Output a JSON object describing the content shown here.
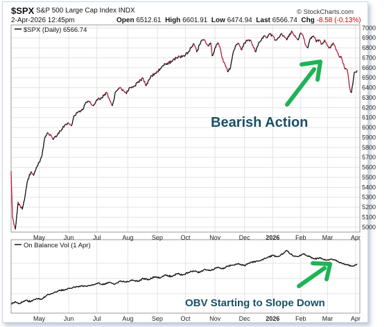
{
  "header": {
    "symbol": "$SPX",
    "name": "S&P 500 Large Cap Index",
    "exchange": "INDX",
    "date": "2-Apr-2026 12:45pm",
    "brand": "© StockCharts.com",
    "open_label": "Open",
    "open": "6512.61",
    "high_label": "High",
    "high": "6601.91",
    "low_label": "Low",
    "low": "6474.94",
    "last_label": "Last",
    "last": "6566.74",
    "chg_label": "Chg",
    "chg": "-8.58 (-0.13%)"
  },
  "colors": {
    "up": "#111111",
    "down": "#b3203a",
    "annotation": "#1a4f66",
    "arrow": "#1fb356",
    "grid": "#e3e3e3"
  },
  "annotations": {
    "price": "Bearish Action",
    "obv": "OBV Starting to Slope Down"
  },
  "chart_data": [
    {
      "type": "line",
      "legend": "$SPX (Daily) 6566.74",
      "y_ticks": [
        5000,
        5100,
        5200,
        5300,
        5400,
        5500,
        5600,
        5700,
        5800,
        5900,
        6000,
        6100,
        6200,
        6300,
        6400,
        6500,
        6600,
        6700,
        6800,
        6900,
        7000
      ],
      "ylim": [
        4950,
        7030
      ],
      "x_ticks": [
        "May",
        "Jun",
        "Jul",
        "Aug",
        "Sep",
        "Oct",
        "Nov",
        "Dec",
        "2026",
        "Feb",
        "Mar",
        "Apr"
      ],
      "x_tick_positions": [
        20,
        41,
        61,
        83,
        104,
        124,
        145,
        166,
        186,
        206,
        225,
        245
      ],
      "x_range": [
        0,
        248
      ],
      "series": [
        {
          "anchors": [
            [
              0,
              5560
            ],
            [
              1,
              5100
            ],
            [
              3,
              4980
            ],
            [
              5,
              5250
            ],
            [
              8,
              5180
            ],
            [
              10,
              5320
            ],
            [
              12,
              5480
            ],
            [
              14,
              5550
            ],
            [
              16,
              5520
            ],
            [
              18,
              5600
            ],
            [
              20,
              5650
            ],
            [
              22,
              5720
            ],
            [
              24,
              5900
            ],
            [
              26,
              5950
            ],
            [
              28,
              5930
            ],
            [
              30,
              5880
            ],
            [
              33,
              5930
            ],
            [
              36,
              5980
            ],
            [
              38,
              6020
            ],
            [
              41,
              6040
            ],
            [
              43,
              6020
            ],
            [
              45,
              6120
            ],
            [
              48,
              6160
            ],
            [
              51,
              6180
            ],
            [
              53,
              6250
            ],
            [
              56,
              6260
            ],
            [
              58,
              6220
            ],
            [
              61,
              6280
            ],
            [
              64,
              6300
            ],
            [
              66,
              6320
            ],
            [
              68,
              6350
            ],
            [
              70,
              6280
            ],
            [
              72,
              6220
            ],
            [
              74,
              6350
            ],
            [
              76,
              6380
            ],
            [
              78,
              6400
            ],
            [
              80,
              6370
            ],
            [
              82,
              6340
            ],
            [
              84,
              6400
            ],
            [
              86,
              6410
            ],
            [
              88,
              6420
            ],
            [
              90,
              6450
            ],
            [
              92,
              6480
            ],
            [
              94,
              6490
            ],
            [
              96,
              6420
            ],
            [
              98,
              6480
            ],
            [
              100,
              6520
            ],
            [
              102,
              6540
            ],
            [
              104,
              6560
            ],
            [
              106,
              6590
            ],
            [
              108,
              6620
            ],
            [
              110,
              6640
            ],
            [
              112,
              6650
            ],
            [
              114,
              6660
            ],
            [
              116,
              6690
            ],
            [
              118,
              6700
            ],
            [
              120,
              6710
            ],
            [
              122,
              6720
            ],
            [
              124,
              6730
            ],
            [
              126,
              6760
            ],
            [
              128,
              6800
            ],
            [
              130,
              6840
            ],
            [
              132,
              6760
            ],
            [
              134,
              6830
            ],
            [
              136,
              6880
            ],
            [
              138,
              6870
            ],
            [
              140,
              6820
            ],
            [
              142,
              6850
            ],
            [
              143,
              6720
            ],
            [
              145,
              6800
            ],
            [
              147,
              6850
            ],
            [
              149,
              6780
            ],
            [
              150,
              6700
            ],
            [
              152,
              6640
            ],
            [
              154,
              6560
            ],
            [
              156,
              6600
            ],
            [
              158,
              6760
            ],
            [
              160,
              6830
            ],
            [
              162,
              6840
            ],
            [
              164,
              6780
            ],
            [
              166,
              6850
            ],
            [
              168,
              6870
            ],
            [
              170,
              6880
            ],
            [
              172,
              6820
            ],
            [
              174,
              6760
            ],
            [
              176,
              6850
            ],
            [
              178,
              6880
            ],
            [
              180,
              6920
            ],
            [
              182,
              6900
            ],
            [
              184,
              6940
            ],
            [
              186,
              6920
            ],
            [
              188,
              6880
            ],
            [
              190,
              6900
            ],
            [
              192,
              6940
            ],
            [
              194,
              6920
            ],
            [
              196,
              6880
            ],
            [
              198,
              6940
            ],
            [
              200,
              6960
            ],
            [
              202,
              6920
            ],
            [
              204,
              6880
            ],
            [
              206,
              6950
            ],
            [
              208,
              6900
            ],
            [
              209,
              6840
            ],
            [
              211,
              6800
            ],
            [
              213,
              6900
            ],
            [
              215,
              6920
            ],
            [
              217,
              6860
            ],
            [
              219,
              6880
            ],
            [
              221,
              6840
            ],
            [
              223,
              6880
            ],
            [
              225,
              6820
            ],
            [
              227,
              6800
            ],
            [
              229,
              6850
            ],
            [
              231,
              6780
            ],
            [
              233,
              6720
            ],
            [
              235,
              6700
            ],
            [
              237,
              6600
            ],
            [
              239,
              6580
            ],
            [
              241,
              6380
            ],
            [
              242,
              6350
            ],
            [
              244,
              6550
            ],
            [
              246,
              6570
            ]
          ]
        }
      ]
    },
    {
      "type": "line",
      "legend": "On Balance Vol (1 Apr)",
      "x_ticks": [
        "May",
        "Jun",
        "Jul",
        "Aug",
        "Sep",
        "Oct",
        "Nov",
        "Dec",
        "2026",
        "Feb",
        "Mar",
        "Apr"
      ],
      "x_tick_positions": [
        20,
        41,
        61,
        83,
        104,
        124,
        145,
        166,
        186,
        206,
        225,
        245
      ],
      "ylim": [
        0,
        100
      ],
      "series": [
        {
          "anchors": [
            [
              0,
              8
            ],
            [
              3,
              12
            ],
            [
              6,
              9
            ],
            [
              10,
              14
            ],
            [
              14,
              12
            ],
            [
              18,
              17
            ],
            [
              22,
              16
            ],
            [
              26,
              24
            ],
            [
              30,
              26
            ],
            [
              34,
              30
            ],
            [
              38,
              31
            ],
            [
              42,
              34
            ],
            [
              46,
              36
            ],
            [
              50,
              38
            ],
            [
              54,
              37
            ],
            [
              58,
              40
            ],
            [
              62,
              43
            ],
            [
              66,
              40
            ],
            [
              70,
              44
            ],
            [
              74,
              41
            ],
            [
              78,
              46
            ],
            [
              82,
              44
            ],
            [
              86,
              48
            ],
            [
              90,
              45
            ],
            [
              94,
              50
            ],
            [
              98,
              48
            ],
            [
              102,
              53
            ],
            [
              106,
              51
            ],
            [
              110,
              56
            ],
            [
              114,
              53
            ],
            [
              118,
              58
            ],
            [
              122,
              56
            ],
            [
              126,
              60
            ],
            [
              130,
              62
            ],
            [
              134,
              60
            ],
            [
              138,
              65
            ],
            [
              142,
              63
            ],
            [
              146,
              68
            ],
            [
              150,
              66
            ],
            [
              154,
              70
            ],
            [
              158,
              72
            ],
            [
              162,
              74
            ],
            [
              166,
              71
            ],
            [
              170,
              76
            ],
            [
              174,
              78
            ],
            [
              178,
              80
            ],
            [
              182,
              84
            ],
            [
              186,
              88
            ],
            [
              190,
              86
            ],
            [
              194,
              92
            ],
            [
              196,
              96
            ],
            [
              200,
              88
            ],
            [
              204,
              86
            ],
            [
              208,
              90
            ],
            [
              212,
              86
            ],
            [
              216,
              82
            ],
            [
              220,
              84
            ],
            [
              224,
              80
            ],
            [
              228,
              82
            ],
            [
              232,
              78
            ],
            [
              236,
              74
            ],
            [
              240,
              72
            ],
            [
              243,
              70
            ],
            [
              246,
              74
            ]
          ]
        }
      ]
    }
  ]
}
